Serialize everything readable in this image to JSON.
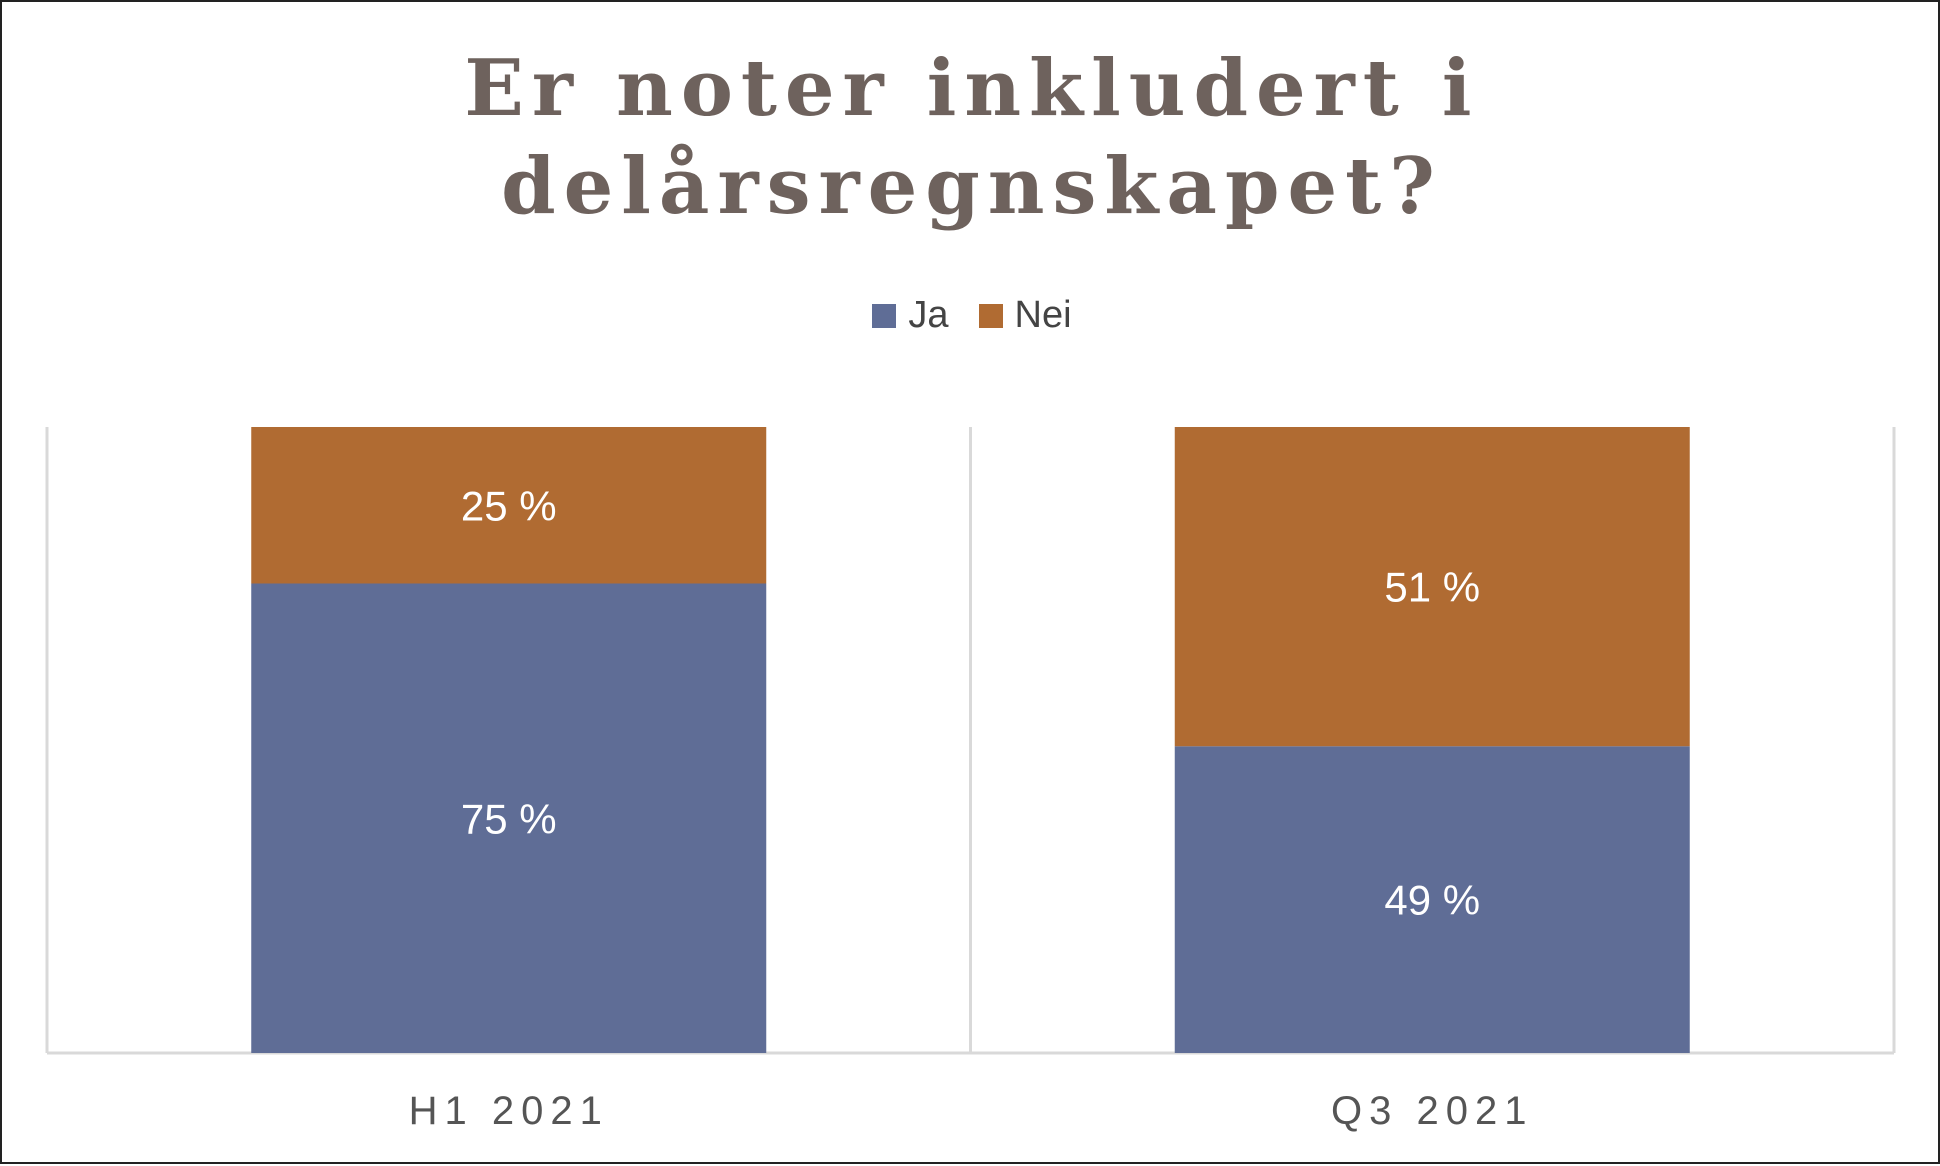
{
  "chart_data": {
    "type": "bar",
    "stacked": true,
    "title_lines": [
      "Er noter inkludert i",
      "delårsregnskapet?"
    ],
    "categories": [
      "H1 2021",
      "Q3 2021"
    ],
    "series": [
      {
        "name": "Ja",
        "values": [
          75,
          49
        ],
        "labels": [
          "75 %",
          "49 %"
        ],
        "color": "#5f6d96"
      },
      {
        "name": "Nei",
        "values": [
          25,
          51
        ],
        "labels": [
          "25 %",
          "51 %"
        ],
        "color": "#b06b32"
      }
    ],
    "ylim": [
      0,
      100
    ],
    "grid": false,
    "legend_position": "top-center"
  }
}
